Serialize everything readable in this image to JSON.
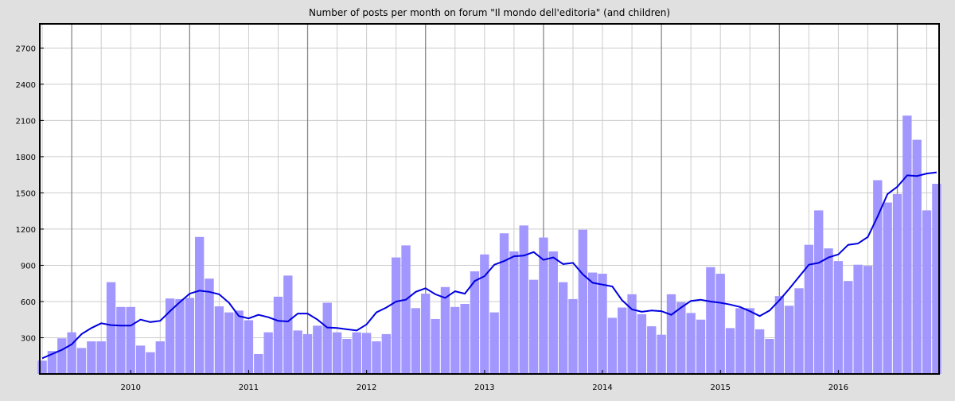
{
  "chart_data": {
    "type": "bar",
    "title": "Number of posts per month on forum \"Il mondo dell'editoria\" (and children)",
    "xlabel": "",
    "ylabel": "",
    "ylim": [
      0,
      2900
    ],
    "yticks": [
      300,
      600,
      900,
      1200,
      1500,
      1800,
      2100,
      2400,
      2700
    ],
    "xlim_months": [
      -0.25,
      91.25
    ],
    "year_labels": [
      {
        "label": "2010",
        "month_index": 9
      },
      {
        "label": "2011",
        "month_index": 21
      },
      {
        "label": "2012",
        "month_index": 33
      },
      {
        "label": "2013",
        "month_index": 45
      },
      {
        "label": "2014",
        "month_index": 57
      },
      {
        "label": "2015",
        "month_index": 69
      },
      {
        "label": "2016",
        "month_index": 81
      }
    ],
    "year_separators_month_index": [
      3,
      15,
      27,
      39,
      51,
      63,
      75,
      87
    ],
    "grid": true,
    "colors": {
      "bar": "#a197ff",
      "line": "#0000e0",
      "background": "#ffffff",
      "outer": "#e0e0e0",
      "grid": "#cccccc",
      "separator": "#888888"
    },
    "series": [
      {
        "kind": "bar",
        "values": [
          110,
          190,
          295,
          345,
          215,
          270,
          270,
          760,
          555,
          555,
          235,
          180,
          270,
          625,
          620,
          630,
          1135,
          790,
          560,
          510,
          525,
          445,
          165,
          345,
          640,
          815,
          360,
          330,
          400,
          590,
          345,
          290,
          345,
          340,
          270,
          330,
          965,
          1065,
          545,
          665,
          455,
          720,
          555,
          580,
          850,
          990,
          510,
          1165,
          1015,
          1230,
          780,
          1130,
          1015,
          760,
          620,
          1195,
          840,
          830,
          465,
          550,
          660,
          495,
          395,
          325,
          660,
          595,
          505,
          450,
          885,
          830,
          380,
          545,
          545,
          370,
          290,
          645,
          565,
          710,
          1070,
          1355,
          1040,
          935,
          770,
          905,
          895,
          1605,
          1420,
          1490,
          2140,
          1940,
          1355,
          1575
        ]
      },
      {
        "kind": "line",
        "values": [
          130,
          165,
          200,
          245,
          330,
          380,
          420,
          405,
          400,
          400,
          450,
          430,
          440,
          520,
          595,
          665,
          690,
          680,
          660,
          590,
          480,
          460,
          490,
          470,
          440,
          435,
          500,
          500,
          450,
          385,
          380,
          370,
          360,
          410,
          510,
          550,
          600,
          615,
          680,
          710,
          660,
          630,
          685,
          665,
          770,
          810,
          905,
          935,
          975,
          980,
          1010,
          945,
          965,
          910,
          920,
          825,
          755,
          740,
          725,
          610,
          535,
          515,
          525,
          520,
          490,
          550,
          605,
          615,
          600,
          590,
          575,
          555,
          520,
          480,
          525,
          610,
          705,
          805,
          905,
          920,
          965,
          990,
          1070,
          1080,
          1135,
          1305,
          1490,
          1550,
          1645,
          1640,
          1660,
          1670
        ]
      }
    ]
  }
}
